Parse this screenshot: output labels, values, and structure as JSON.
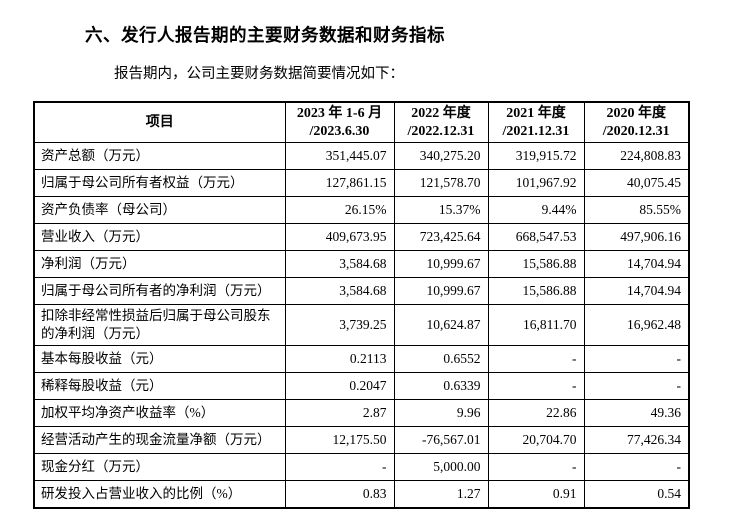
{
  "page": {
    "heading": "六、发行人报告期的主要财务数据和财务指标",
    "intro": "报告期内，公司主要财务数据简要情况如下："
  },
  "table": {
    "header": {
      "item_label": "项目",
      "periods": [
        {
          "line1": "2023 年 1-6 月",
          "line2": "/2023.6.30"
        },
        {
          "line1": "2022 年度",
          "line2": "/2022.12.31"
        },
        {
          "line1": "2021 年度",
          "line2": "/2021.12.31"
        },
        {
          "line1": "2020 年度",
          "line2": "/2020.12.31"
        }
      ]
    },
    "rows": [
      {
        "label": "资产总额（万元）",
        "values": [
          "351,445.07",
          "340,275.20",
          "319,915.72",
          "224,808.83"
        ]
      },
      {
        "label": "归属于母公司所有者权益（万元）",
        "values": [
          "127,861.15",
          "121,578.70",
          "101,967.92",
          "40,075.45"
        ]
      },
      {
        "label": "资产负债率（母公司）",
        "values": [
          "26.15%",
          "15.37%",
          "9.44%",
          "85.55%"
        ]
      },
      {
        "label": "营业收入（万元）",
        "values": [
          "409,673.95",
          "723,425.64",
          "668,547.53",
          "497,906.16"
        ]
      },
      {
        "label": "净利润（万元）",
        "values": [
          "3,584.68",
          "10,999.67",
          "15,586.88",
          "14,704.94"
        ]
      },
      {
        "label": "归属于母公司所有者的净利润（万元）",
        "values": [
          "3,584.68",
          "10,999.67",
          "15,586.88",
          "14,704.94"
        ]
      },
      {
        "label": "扣除非经常性损益后归属于母公司股东的净利润（万元）",
        "values": [
          "3,739.25",
          "10,624.87",
          "16,811.70",
          "16,962.48"
        ]
      },
      {
        "label": "基本每股收益（元）",
        "values": [
          "0.2113",
          "0.6552",
          "-",
          "-"
        ]
      },
      {
        "label": "稀释每股收益（元）",
        "values": [
          "0.2047",
          "0.6339",
          "-",
          "-"
        ]
      },
      {
        "label": "加权平均净资产收益率（%）",
        "values": [
          "2.87",
          "9.96",
          "22.86",
          "49.36"
        ]
      },
      {
        "label": "经营活动产生的现金流量净额（万元）",
        "values": [
          "12,175.50",
          "-76,567.01",
          "20,704.70",
          "77,426.34"
        ]
      },
      {
        "label": "现金分红（万元）",
        "values": [
          "-",
          "5,000.00",
          "-",
          "-"
        ]
      },
      {
        "label": "研发投入占营业收入的比例（%）",
        "values": [
          "0.83",
          "1.27",
          "0.91",
          "0.54"
        ]
      }
    ]
  }
}
